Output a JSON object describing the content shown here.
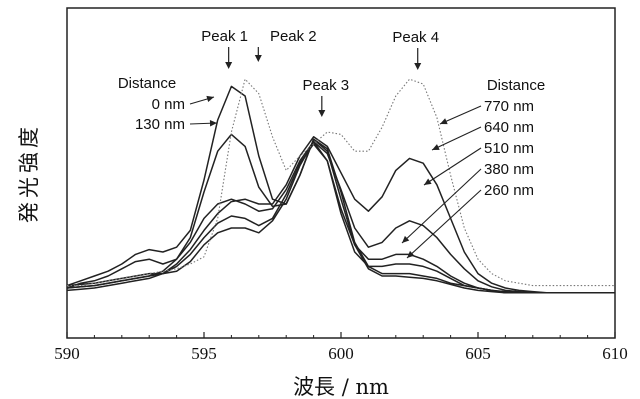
{
  "chart_data": {
    "type": "line",
    "xlabel": "波長 / nm",
    "ylabel": "発光強度",
    "xlim": [
      590,
      610
    ],
    "ylim": [
      0,
      1
    ],
    "xticks": [
      590,
      595,
      600,
      605,
      610
    ],
    "x": [
      590,
      590.5,
      591,
      591.5,
      592,
      592.5,
      593,
      593.5,
      594,
      594.5,
      595,
      595.5,
      596,
      596.5,
      597,
      597.5,
      598,
      598.5,
      599,
      599.5,
      600,
      600.5,
      601,
      601.5,
      602,
      602.5,
      603,
      603.5,
      604,
      604.5,
      605,
      605.5,
      606,
      606.5,
      607,
      607.5,
      608,
      608.5,
      609,
      609.5,
      610
    ],
    "series": [
      {
        "name": "0 nm",
        "values": [
          0.06,
          0.08,
          0.1,
          0.12,
          0.15,
          0.19,
          0.21,
          0.2,
          0.22,
          0.29,
          0.5,
          0.75,
          0.89,
          0.85,
          0.6,
          0.42,
          0.4,
          0.52,
          0.67,
          0.62,
          0.42,
          0.23,
          0.13,
          0.1,
          0.1,
          0.095,
          0.09,
          0.08,
          0.065,
          0.05,
          0.04,
          0.035,
          0.03,
          0.03,
          0.03,
          0.03,
          0.03,
          0.03,
          0.03,
          0.03,
          0.03
        ]
      },
      {
        "name": "130 nm",
        "values": [
          0.05,
          0.07,
          0.08,
          0.1,
          0.13,
          0.16,
          0.17,
          0.15,
          0.17,
          0.26,
          0.45,
          0.62,
          0.69,
          0.64,
          0.47,
          0.39,
          0.4,
          0.52,
          0.67,
          0.63,
          0.45,
          0.24,
          0.14,
          0.11,
          0.11,
          0.11,
          0.1,
          0.09,
          0.07,
          0.06,
          0.05,
          0.04,
          0.035,
          0.03,
          0.03,
          0.03,
          0.03,
          0.03,
          0.03,
          0.03,
          0.03
        ]
      },
      {
        "name": "260 nm",
        "values": [
          0.06,
          0.065,
          0.07,
          0.08,
          0.09,
          0.1,
          0.11,
          0.11,
          0.12,
          0.16,
          0.23,
          0.28,
          0.3,
          0.3,
          0.28,
          0.33,
          0.42,
          0.56,
          0.66,
          0.58,
          0.36,
          0.2,
          0.14,
          0.14,
          0.15,
          0.15,
          0.14,
          0.12,
          0.09,
          0.06,
          0.05,
          0.04,
          0.03,
          0.03,
          0.03,
          0.03,
          0.03,
          0.03,
          0.03,
          0.03,
          0.03
        ]
      },
      {
        "name": "380 nm",
        "values": [
          0.05,
          0.055,
          0.06,
          0.07,
          0.08,
          0.09,
          0.1,
          0.11,
          0.14,
          0.19,
          0.26,
          0.32,
          0.35,
          0.34,
          0.31,
          0.34,
          0.44,
          0.57,
          0.65,
          0.58,
          0.38,
          0.23,
          0.17,
          0.17,
          0.19,
          0.19,
          0.17,
          0.14,
          0.1,
          0.07,
          0.05,
          0.04,
          0.03,
          0.03,
          0.03,
          0.03,
          0.03,
          0.03,
          0.03,
          0.03,
          0.03
        ]
      },
      {
        "name": "510 nm",
        "values": [
          0.05,
          0.055,
          0.06,
          0.07,
          0.08,
          0.09,
          0.1,
          0.12,
          0.17,
          0.24,
          0.34,
          0.4,
          0.42,
          0.4,
          0.37,
          0.38,
          0.46,
          0.58,
          0.66,
          0.61,
          0.46,
          0.3,
          0.22,
          0.24,
          0.3,
          0.33,
          0.31,
          0.26,
          0.19,
          0.13,
          0.08,
          0.055,
          0.04,
          0.035,
          0.03,
          0.03,
          0.03,
          0.03,
          0.03,
          0.03,
          0.03
        ]
      },
      {
        "name": "640 nm",
        "values": [
          0.04,
          0.045,
          0.05,
          0.06,
          0.07,
          0.08,
          0.09,
          0.11,
          0.15,
          0.21,
          0.29,
          0.36,
          0.41,
          0.42,
          0.4,
          0.4,
          0.48,
          0.6,
          0.68,
          0.64,
          0.53,
          0.42,
          0.37,
          0.43,
          0.54,
          0.59,
          0.57,
          0.48,
          0.34,
          0.2,
          0.11,
          0.07,
          0.05,
          0.04,
          0.035,
          0.03,
          0.03,
          0.03,
          0.03,
          0.03,
          0.03
        ]
      },
      {
        "name": "770 nm",
        "style": "dotted",
        "values": [
          0.06,
          0.06,
          0.07,
          0.08,
          0.09,
          0.1,
          0.11,
          0.12,
          0.13,
          0.15,
          0.18,
          0.34,
          0.7,
          0.92,
          0.86,
          0.68,
          0.54,
          0.6,
          0.65,
          0.7,
          0.69,
          0.62,
          0.62,
          0.72,
          0.85,
          0.92,
          0.9,
          0.76,
          0.52,
          0.3,
          0.17,
          0.11,
          0.08,
          0.07,
          0.06,
          0.06,
          0.06,
          0.06,
          0.06,
          0.06,
          0.06
        ]
      }
    ],
    "annotations": [
      {
        "text": "Peak 1",
        "x": 595.9
      },
      {
        "text": "Peak 2",
        "x": 596.8
      },
      {
        "text": "Peak 3",
        "x": 599.3
      },
      {
        "text": "Peak 4",
        "x": 602.8
      }
    ],
    "legend_left": {
      "title": "Distance",
      "entries": [
        "0 nm",
        "130 nm"
      ]
    },
    "legend_right": {
      "title": "Distance",
      "entries": [
        "770 nm",
        "640 nm",
        "510 nm",
        "380 nm",
        "260 nm"
      ]
    }
  }
}
